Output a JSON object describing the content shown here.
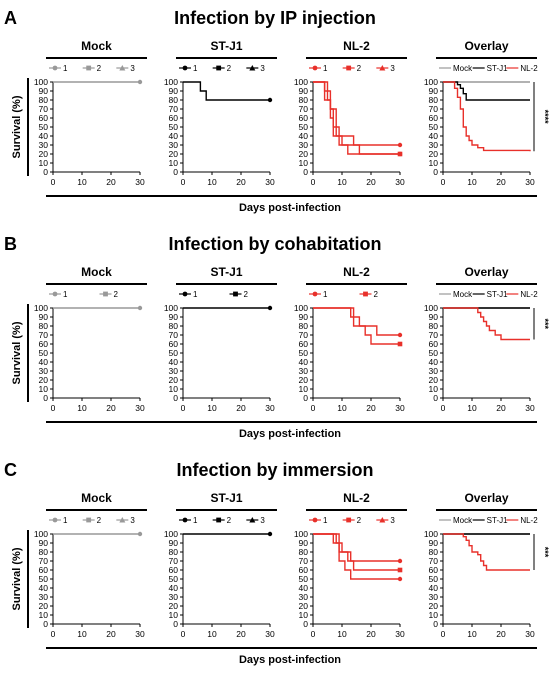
{
  "shared": {
    "y_axis_label": "Survival (%)",
    "x_axis_label": "Days post-infection",
    "x_ticks": [
      "0",
      "10",
      "20",
      "30"
    ],
    "y_ticks": [
      "0",
      "10",
      "20",
      "30",
      "40",
      "50",
      "60",
      "70",
      "80",
      "90",
      "100"
    ],
    "colors": {
      "mock": "#999999",
      "stj1": "#000000",
      "nl2": "#e8302a"
    }
  },
  "chart_data": [
    {
      "panel": "A",
      "title": "Infection by IP injection",
      "significance": "****",
      "subplots": [
        {
          "type": "line",
          "title": "Mock",
          "color": "#999999",
          "legend": [
            {
              "label": "1",
              "marker": "circle"
            },
            {
              "label": "2",
              "marker": "square"
            },
            {
              "label": "3",
              "marker": "triangle"
            }
          ],
          "series": [
            {
              "name": "1",
              "steps": [
                [
                  0,
                  100
                ],
                [
                  30,
                  100
                ]
              ]
            }
          ]
        },
        {
          "type": "line",
          "title": "ST-J1",
          "color": "#000000",
          "legend": [
            {
              "label": "1",
              "marker": "circle"
            },
            {
              "label": "2",
              "marker": "square"
            },
            {
              "label": "3",
              "marker": "triangle"
            }
          ],
          "series": [
            {
              "name": "1",
              "steps": [
                [
                  0,
                  100
                ],
                [
                  6,
                  90
                ],
                [
                  8,
                  80
                ],
                [
                  30,
                  80
                ]
              ]
            }
          ]
        },
        {
          "type": "line",
          "title": "NL-2",
          "color": "#e8302a",
          "legend": [
            {
              "label": "1",
              "marker": "circle"
            },
            {
              "label": "2",
              "marker": "square"
            },
            {
              "label": "3",
              "marker": "triangle"
            }
          ],
          "series": [
            {
              "name": "1",
              "steps": [
                [
                  0,
                  100
                ],
                [
                  4,
                  90
                ],
                [
                  5,
                  80
                ],
                [
                  6,
                  70
                ],
                [
                  7,
                  50
                ],
                [
                  8,
                  40
                ],
                [
                  10,
                  30
                ],
                [
                  30,
                  30
                ]
              ]
            },
            {
              "name": "2",
              "steps": [
                [
                  0,
                  100
                ],
                [
                  4,
                  80
                ],
                [
                  6,
                  60
                ],
                [
                  7,
                  40
                ],
                [
                  9,
                  30
                ],
                [
                  12,
                  20
                ],
                [
                  30,
                  20
                ]
              ]
            },
            {
              "name": "3",
              "steps": [
                [
                  0,
                  100
                ],
                [
                  5,
                  90
                ],
                [
                  6,
                  70
                ],
                [
                  8,
                  50
                ],
                [
                  9,
                  40
                ],
                [
                  14,
                  30
                ],
                [
                  16,
                  20
                ],
                [
                  30,
                  20
                ]
              ]
            }
          ]
        },
        {
          "type": "line",
          "title": "Overlay",
          "legend": [
            {
              "label": "Mock",
              "color": "#999999"
            },
            {
              "label": "ST-J1",
              "color": "#000000"
            },
            {
              "label": "NL-2",
              "color": "#e8302a"
            }
          ],
          "series": [
            {
              "name": "Mock",
              "color": "#999999",
              "steps": [
                [
                  0,
                  100
                ],
                [
                  30,
                  100
                ]
              ]
            },
            {
              "name": "ST-J1",
              "color": "#000000",
              "steps": [
                [
                  0,
                  100
                ],
                [
                  5,
                  97
                ],
                [
                  6,
                  93
                ],
                [
                  7,
                  87
                ],
                [
                  8,
                  80
                ],
                [
                  30,
                  80
                ]
              ]
            },
            {
              "name": "NL-2",
              "color": "#e8302a",
              "steps": [
                [
                  0,
                  100
                ],
                [
                  4,
                  93
                ],
                [
                  5,
                  83
                ],
                [
                  6,
                  70
                ],
                [
                  7,
                  50
                ],
                [
                  8,
                  40
                ],
                [
                  9,
                  35
                ],
                [
                  10,
                  30
                ],
                [
                  12,
                  27
                ],
                [
                  14,
                  24
                ],
                [
                  30,
                  23
                ]
              ]
            }
          ]
        }
      ]
    },
    {
      "panel": "B",
      "title": "Infection by cohabitation",
      "significance": "***",
      "subplots": [
        {
          "type": "line",
          "title": "Mock",
          "color": "#999999",
          "legend": [
            {
              "label": "1",
              "marker": "circle"
            },
            {
              "label": "2",
              "marker": "square"
            }
          ],
          "series": [
            {
              "name": "1",
              "steps": [
                [
                  0,
                  100
                ],
                [
                  30,
                  100
                ]
              ]
            }
          ]
        },
        {
          "type": "line",
          "title": "ST-J1",
          "color": "#000000",
          "legend": [
            {
              "label": "1",
              "marker": "circle"
            },
            {
              "label": "2",
              "marker": "square"
            }
          ],
          "series": [
            {
              "name": "1",
              "steps": [
                [
                  0,
                  100
                ],
                [
                  30,
                  100
                ]
              ]
            }
          ]
        },
        {
          "type": "line",
          "title": "NL-2",
          "color": "#e8302a",
          "legend": [
            {
              "label": "1",
              "marker": "circle"
            },
            {
              "label": "2",
              "marker": "square"
            }
          ],
          "series": [
            {
              "name": "1",
              "steps": [
                [
                  0,
                  100
                ],
                [
                  13,
                  90
                ],
                [
                  16,
                  80
                ],
                [
                  22,
                  70
                ],
                [
                  30,
                  70
                ]
              ]
            },
            {
              "name": "2",
              "steps": [
                [
                  0,
                  100
                ],
                [
                  14,
                  80
                ],
                [
                  18,
                  70
                ],
                [
                  20,
                  60
                ],
                [
                  30,
                  60
                ]
              ]
            }
          ]
        },
        {
          "type": "line",
          "title": "Overlay",
          "legend": [
            {
              "label": "Mock",
              "color": "#999999"
            },
            {
              "label": "ST-J1",
              "color": "#000000"
            },
            {
              "label": "NL-2",
              "color": "#e8302a"
            }
          ],
          "series": [
            {
              "name": "Mock",
              "color": "#999999",
              "steps": [
                [
                  0,
                  100
                ],
                [
                  30,
                  100
                ]
              ]
            },
            {
              "name": "ST-J1",
              "color": "#000000",
              "steps": [
                [
                  0,
                  100
                ],
                [
                  30,
                  100
                ]
              ]
            },
            {
              "name": "NL-2",
              "color": "#e8302a",
              "steps": [
                [
                  0,
                  100
                ],
                [
                  12,
                  95
                ],
                [
                  13,
                  90
                ],
                [
                  14,
                  85
                ],
                [
                  15,
                  80
                ],
                [
                  16,
                  75
                ],
                [
                  18,
                  70
                ],
                [
                  20,
                  65
                ],
                [
                  30,
                  65
                ]
              ]
            }
          ]
        }
      ]
    },
    {
      "panel": "C",
      "title": "Infection by immersion",
      "significance": "***",
      "subplots": [
        {
          "type": "line",
          "title": "Mock",
          "color": "#999999",
          "legend": [
            {
              "label": "1",
              "marker": "circle"
            },
            {
              "label": "2",
              "marker": "square"
            },
            {
              "label": "3",
              "marker": "triangle"
            }
          ],
          "series": [
            {
              "name": "1",
              "steps": [
                [
                  0,
                  100
                ],
                [
                  30,
                  100
                ]
              ]
            }
          ]
        },
        {
          "type": "line",
          "title": "ST-J1",
          "color": "#000000",
          "legend": [
            {
              "label": "1",
              "marker": "circle"
            },
            {
              "label": "2",
              "marker": "square"
            },
            {
              "label": "3",
              "marker": "triangle"
            }
          ],
          "series": [
            {
              "name": "1",
              "steps": [
                [
                  0,
                  100
                ],
                [
                  30,
                  100
                ]
              ]
            }
          ]
        },
        {
          "type": "line",
          "title": "NL-2",
          "color": "#e8302a",
          "legend": [
            {
              "label": "1",
              "marker": "circle"
            },
            {
              "label": "2",
              "marker": "square"
            },
            {
              "label": "3",
              "marker": "triangle"
            }
          ],
          "series": [
            {
              "name": "1",
              "steps": [
                [
                  0,
                  100
                ],
                [
                  7,
                  90
                ],
                [
                  10,
                  80
                ],
                [
                  13,
                  70
                ],
                [
                  30,
                  70
                ]
              ]
            },
            {
              "name": "2",
              "steps": [
                [
                  0,
                  100
                ],
                [
                  9,
                  80
                ],
                [
                  12,
                  70
                ],
                [
                  14,
                  60
                ],
                [
                  30,
                  60
                ]
              ]
            },
            {
              "name": "3",
              "steps": [
                [
                  0,
                  100
                ],
                [
                  8,
                  90
                ],
                [
                  9,
                  70
                ],
                [
                  11,
                  60
                ],
                [
                  13,
                  50
                ],
                [
                  30,
                  50
                ]
              ]
            }
          ]
        },
        {
          "type": "line",
          "title": "Overlay",
          "legend": [
            {
              "label": "Mock",
              "color": "#999999"
            },
            {
              "label": "ST-J1",
              "color": "#000000"
            },
            {
              "label": "NL-2",
              "color": "#e8302a"
            }
          ],
          "series": [
            {
              "name": "Mock",
              "color": "#999999",
              "steps": [
                [
                  0,
                  100
                ],
                [
                  30,
                  100
                ]
              ]
            },
            {
              "name": "ST-J1",
              "color": "#000000",
              "steps": [
                [
                  0,
                  100
                ],
                [
                  30,
                  100
                ]
              ]
            },
            {
              "name": "NL-2",
              "color": "#e8302a",
              "steps": [
                [
                  0,
                  100
                ],
                [
                  7,
                  97
                ],
                [
                  8,
                  93
                ],
                [
                  9,
                  87
                ],
                [
                  10,
                  80
                ],
                [
                  12,
                  77
                ],
                [
                  13,
                  70
                ],
                [
                  14,
                  65
                ],
                [
                  15,
                  60
                ],
                [
                  30,
                  60
                ]
              ]
            }
          ]
        }
      ]
    }
  ]
}
